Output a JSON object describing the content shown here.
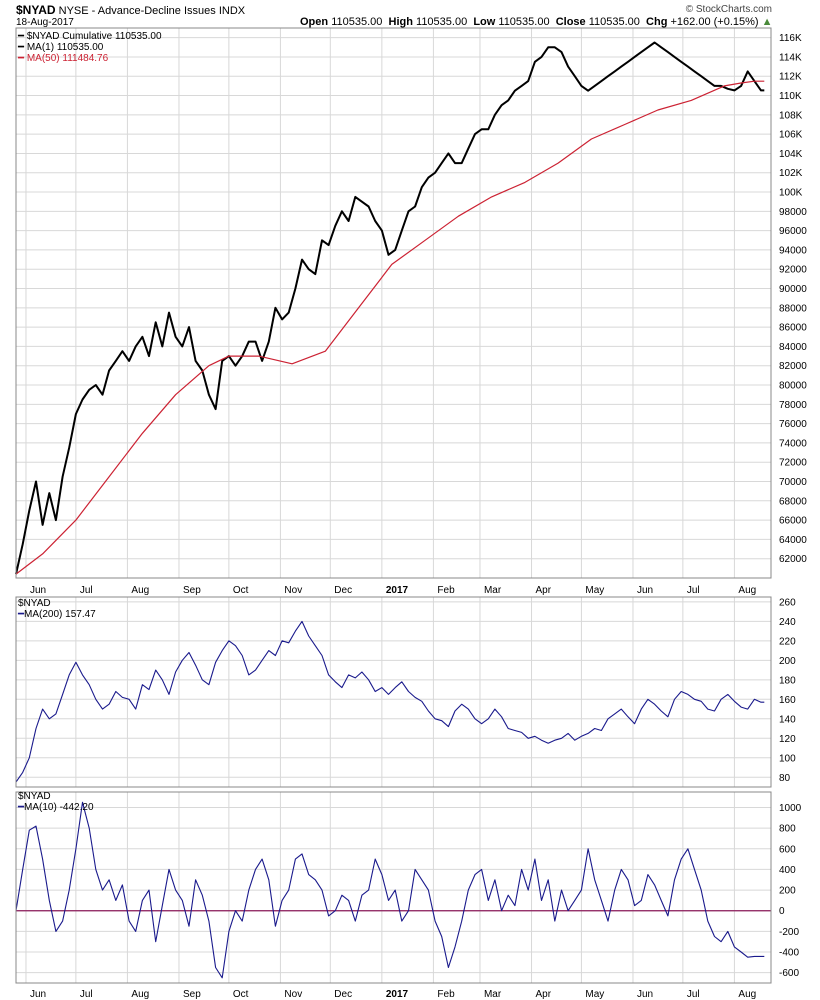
{
  "header": {
    "symbol": "$NYAD",
    "description": "NYSE - Advance-Decline Issues INDX",
    "date": "18-Aug-2017",
    "open_label": "Open",
    "open": "110535.00",
    "high_label": "High",
    "high": "110535.00",
    "low_label": "Low",
    "low": "110535.00",
    "close_label": "Close",
    "close": "110535.00",
    "chg_label": "Chg",
    "chg": "+162.00 (+0.15%)",
    "source": "© StockCharts.com"
  },
  "colors": {
    "price": "#000000",
    "ma50": "#cc2233",
    "indicator": "#1a1a8c",
    "zero_line": "#8b1a5a",
    "grid": "#d8d8d8"
  },
  "x_axis": {
    "months": [
      {
        "label": "Jun",
        "day": 0
      },
      {
        "label": "Jul",
        "day": 30
      },
      {
        "label": "Aug",
        "day": 61
      },
      {
        "label": "Sep",
        "day": 92
      },
      {
        "label": "Oct",
        "day": 122
      },
      {
        "label": "Nov",
        "day": 153
      },
      {
        "label": "Dec",
        "day": 183
      },
      {
        "label": "2017",
        "day": 214,
        "bold": true
      },
      {
        "label": "Feb",
        "day": 245
      },
      {
        "label": "Mar",
        "day": 273
      },
      {
        "label": "Apr",
        "day": 304
      },
      {
        "label": "May",
        "day": 334
      },
      {
        "label": "Jun",
        "day": 365
      },
      {
        "label": "Jul",
        "day": 395
      },
      {
        "label": "Aug",
        "day": 426
      }
    ],
    "x_range": [
      -6,
      448
    ]
  },
  "chart_data": [
    {
      "type": "line",
      "legend": [
        {
          "text": "$NYAD Cumulative 110535.00",
          "series": "price"
        },
        {
          "text": "MA(1) 110535.00",
          "series": "price"
        },
        {
          "text": "MA(50) 111484.76",
          "series": "ma50"
        }
      ],
      "ylim": [
        60000,
        117000
      ],
      "yticks": [
        62000,
        64000,
        66000,
        68000,
        70000,
        72000,
        74000,
        76000,
        78000,
        80000,
        82000,
        84000,
        86000,
        88000,
        90000,
        92000,
        94000,
        96000,
        98000,
        100000,
        102000,
        104000,
        106000,
        108000,
        110000,
        112000,
        114000,
        116000
      ],
      "ytick_labels": [
        "62000",
        "64000",
        "66000",
        "68000",
        "70000",
        "72000",
        "74000",
        "76000",
        "78000",
        "80000",
        "82000",
        "84000",
        "86000",
        "88000",
        "90000",
        "92000",
        "94000",
        "96000",
        "98000",
        "100K",
        "102K",
        "104K",
        "106K",
        "108K",
        "110K",
        "112K",
        "114K",
        "116K"
      ],
      "series": [
        {
          "name": "$NYAD Cumulative",
          "key": "price",
          "x": [
            -6,
            -2,
            2,
            6,
            10,
            14,
            18,
            22,
            26,
            30,
            34,
            38,
            42,
            46,
            50,
            54,
            58,
            62,
            66,
            70,
            74,
            78,
            82,
            86,
            90,
            94,
            98,
            102,
            106,
            110,
            114,
            118,
            122,
            126,
            130,
            134,
            138,
            142,
            146,
            150,
            154,
            158,
            162,
            166,
            170,
            174,
            178,
            182,
            186,
            190,
            194,
            198,
            202,
            206,
            210,
            214,
            218,
            222,
            226,
            230,
            234,
            238,
            242,
            246,
            250,
            254,
            258,
            262,
            266,
            270,
            274,
            278,
            282,
            286,
            290,
            294,
            298,
            302,
            306,
            310,
            314,
            318,
            322,
            326,
            330,
            334,
            338,
            342,
            346,
            350,
            354,
            358,
            362,
            366,
            370,
            374,
            378,
            382,
            386,
            390,
            394,
            398,
            402,
            406,
            410,
            414,
            418,
            422,
            426,
            430,
            434,
            438,
            442,
            444
          ],
          "y": [
            60400,
            63500,
            67000,
            70000,
            65500,
            68800,
            66000,
            70500,
            73500,
            77000,
            78500,
            79500,
            80000,
            79000,
            81500,
            82500,
            83500,
            82500,
            84000,
            85000,
            83000,
            86500,
            84000,
            87500,
            85000,
            84000,
            86000,
            82500,
            81500,
            79000,
            77500,
            82500,
            83000,
            82000,
            83000,
            84500,
            84500,
            82500,
            84500,
            88000,
            86800,
            87500,
            90000,
            93000,
            92000,
            91500,
            95000,
            94500,
            96500,
            98000,
            97000,
            99500,
            99000,
            98500,
            97000,
            96000,
            93500,
            94000,
            96000,
            98000,
            98500,
            100500,
            101500,
            102000,
            103000,
            104000,
            103000,
            103000,
            104500,
            106000,
            106500,
            106500,
            108000,
            109000,
            109500,
            110500,
            111000,
            111500,
            113500,
            114000,
            115000,
            115000,
            114500,
            113000,
            112000,
            111000,
            110500,
            111000,
            111500,
            112000,
            112500,
            113000,
            113500,
            114000,
            114500,
            115000,
            115500,
            115000,
            114500,
            114000,
            113500,
            113000,
            112500,
            112000,
            111500,
            111000,
            111000,
            110700,
            110535,
            111000,
            112500,
            111500,
            110535,
            110535
          ]
        },
        {
          "name": "MA(50)",
          "key": "ma50",
          "x": [
            -6,
            10,
            30,
            50,
            70,
            90,
            110,
            122,
            140,
            160,
            180,
            200,
            220,
            240,
            260,
            280,
            300,
            320,
            340,
            360,
            380,
            400,
            420,
            430,
            438,
            444
          ],
          "y": [
            60400,
            62500,
            66000,
            70500,
            75000,
            79000,
            82000,
            83000,
            83000,
            82200,
            83500,
            88000,
            92500,
            95000,
            97500,
            99500,
            101000,
            103000,
            105500,
            107000,
            108500,
            109500,
            111000,
            111300,
            111484,
            111484
          ]
        }
      ]
    },
    {
      "type": "line",
      "legend": [
        {
          "text": "$NYAD",
          "series": "none"
        },
        {
          "text": "MA(200) 157.47",
          "series": "indicator"
        }
      ],
      "ylim": [
        70,
        265
      ],
      "yticks": [
        80,
        100,
        120,
        140,
        160,
        180,
        200,
        220,
        240,
        260
      ],
      "ytick_labels": [
        "80",
        "100",
        "120",
        "140",
        "160",
        "180",
        "200",
        "220",
        "240",
        "260"
      ],
      "series": [
        {
          "name": "MA(200)",
          "key": "indicator",
          "x": [
            -6,
            -2,
            2,
            6,
            10,
            14,
            18,
            22,
            26,
            30,
            34,
            38,
            42,
            46,
            50,
            54,
            58,
            62,
            66,
            70,
            74,
            78,
            82,
            86,
            90,
            94,
            98,
            102,
            106,
            110,
            114,
            118,
            122,
            126,
            130,
            134,
            138,
            142,
            146,
            150,
            154,
            158,
            162,
            166,
            170,
            174,
            178,
            182,
            186,
            190,
            194,
            198,
            202,
            206,
            210,
            214,
            218,
            222,
            226,
            230,
            234,
            238,
            242,
            246,
            250,
            254,
            258,
            262,
            266,
            270,
            274,
            278,
            282,
            286,
            290,
            294,
            298,
            302,
            306,
            310,
            314,
            318,
            322,
            326,
            330,
            334,
            338,
            342,
            346,
            350,
            354,
            358,
            362,
            366,
            370,
            374,
            378,
            382,
            386,
            390,
            394,
            398,
            402,
            406,
            410,
            414,
            418,
            422,
            426,
            430,
            434,
            438,
            442,
            444
          ],
          "y": [
            75,
            85,
            100,
            130,
            150,
            140,
            145,
            165,
            185,
            198,
            185,
            175,
            160,
            150,
            155,
            168,
            162,
            160,
            150,
            175,
            170,
            190,
            180,
            165,
            188,
            200,
            208,
            195,
            180,
            175,
            198,
            210,
            220,
            215,
            205,
            185,
            190,
            200,
            210,
            205,
            220,
            218,
            230,
            240,
            225,
            215,
            205,
            185,
            178,
            172,
            185,
            182,
            188,
            180,
            168,
            172,
            165,
            172,
            178,
            168,
            162,
            158,
            148,
            140,
            138,
            132,
            148,
            155,
            150,
            140,
            135,
            140,
            150,
            142,
            130,
            128,
            126,
            120,
            122,
            118,
            115,
            118,
            120,
            125,
            118,
            122,
            125,
            130,
            128,
            140,
            145,
            150,
            142,
            135,
            150,
            160,
            155,
            148,
            142,
            160,
            168,
            165,
            160,
            158,
            150,
            148,
            160,
            165,
            158,
            152,
            150,
            160,
            157,
            157
          ]
        }
      ]
    },
    {
      "type": "line",
      "legend": [
        {
          "text": "$NYAD",
          "series": "none"
        },
        {
          "text": "MA(10) -442.20",
          "series": "indicator"
        }
      ],
      "ylim": [
        -700,
        1150
      ],
      "yticks": [
        -600,
        -400,
        -200,
        0,
        200,
        400,
        600,
        800,
        1000
      ],
      "ytick_labels": [
        "-600",
        "-400",
        "-200",
        "0",
        "200",
        "400",
        "600",
        "800",
        "1000"
      ],
      "zero_line": 0,
      "series": [
        {
          "name": "MA(10)",
          "key": "indicator",
          "x": [
            -6,
            -2,
            2,
            6,
            10,
            14,
            18,
            22,
            26,
            30,
            34,
            38,
            42,
            46,
            50,
            54,
            58,
            62,
            66,
            70,
            74,
            78,
            82,
            86,
            90,
            94,
            98,
            102,
            106,
            110,
            114,
            118,
            122,
            126,
            130,
            134,
            138,
            142,
            146,
            150,
            154,
            158,
            162,
            166,
            170,
            174,
            178,
            182,
            186,
            190,
            194,
            198,
            202,
            206,
            210,
            214,
            218,
            222,
            226,
            230,
            234,
            238,
            242,
            246,
            250,
            254,
            258,
            262,
            266,
            270,
            274,
            278,
            282,
            286,
            290,
            294,
            298,
            302,
            306,
            310,
            314,
            318,
            322,
            326,
            330,
            334,
            338,
            342,
            346,
            350,
            354,
            358,
            362,
            366,
            370,
            374,
            378,
            382,
            386,
            390,
            394,
            398,
            402,
            406,
            410,
            414,
            418,
            422,
            426,
            430,
            434,
            438,
            442,
            444
          ],
          "y": [
            0,
            400,
            780,
            820,
            500,
            100,
            -200,
            -100,
            200,
            600,
            1050,
            800,
            400,
            200,
            300,
            100,
            250,
            -100,
            -200,
            100,
            200,
            -300,
            50,
            400,
            200,
            100,
            -150,
            300,
            150,
            -100,
            -550,
            -650,
            -200,
            0,
            -100,
            200,
            400,
            500,
            300,
            -150,
            100,
            200,
            500,
            550,
            350,
            300,
            200,
            -50,
            0,
            150,
            100,
            -100,
            150,
            200,
            500,
            350,
            100,
            200,
            -100,
            0,
            400,
            300,
            200,
            -100,
            -250,
            -550,
            -350,
            -100,
            200,
            350,
            400,
            100,
            300,
            0,
            150,
            50,
            400,
            200,
            500,
            100,
            300,
            -100,
            200,
            0,
            100,
            200,
            600,
            300,
            100,
            -100,
            200,
            400,
            300,
            50,
            100,
            350,
            250,
            100,
            -50,
            300,
            500,
            600,
            400,
            200,
            -100,
            -250,
            -300,
            -200,
            -350,
            -400,
            -450,
            -442,
            -442,
            -442
          ]
        }
      ]
    }
  ]
}
